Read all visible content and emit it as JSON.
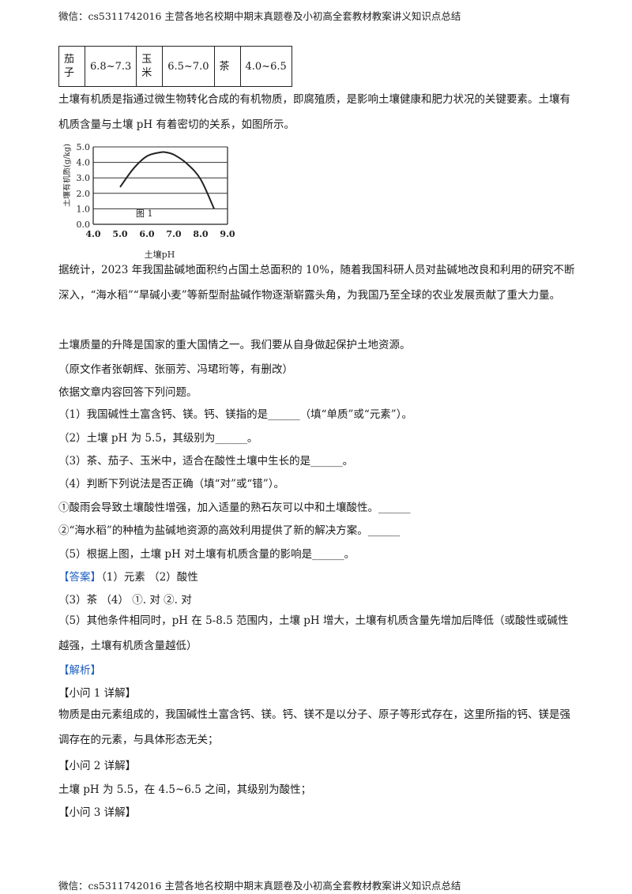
{
  "header": "微信：cs5311742016  主营各地名校期中期末真题卷及小初高全套教材教案讲义知识点总结",
  "footer": "微信：cs5311742016  主营各地名校期中期末真题卷及小初高全套教材教案讲义知识点总结",
  "table": [
    {
      "name": "茄子",
      "value": "6.8~7.3"
    },
    {
      "name": "玉米",
      "value": "6.5~7.0"
    },
    {
      "name": "茶",
      "value": "4.0~6.5"
    }
  ],
  "para1": "土壤有机质是指通过微生物转化合成的有机物质，即腐殖质，是影响土壤健康和肥力状况的关键要素。土壤有机质含量与土壤 pH 有着密切的关系，如图所示。",
  "chart_data": {
    "type": "line",
    "ylabel": "土壤有机质(g/kg)",
    "xlabel": "土壤pH",
    "annotation": "图 1",
    "xlim": [
      4.0,
      9.0
    ],
    "ylim": [
      0.0,
      5.0
    ],
    "xticks": [
      "4.0",
      "5.0",
      "6.0",
      "7.0",
      "8.0",
      "9.0"
    ],
    "yticks": [
      "0.0",
      "1.0",
      "2.0",
      "3.0",
      "4.0",
      "5.0"
    ],
    "grid": "horizontal",
    "series": [
      {
        "x": [
          5.0,
          5.5,
          6.0,
          6.5,
          6.7,
          7.0,
          7.5,
          8.0,
          8.5
        ],
        "y": [
          2.4,
          3.6,
          4.4,
          4.65,
          4.65,
          4.5,
          3.9,
          2.9,
          1.0
        ]
      }
    ]
  },
  "para2": "据统计，2023 年我国盐碱地面积约占国土总面积的 10%，随着我国科研人员对盐碱地改良和利用的研究不断深入，“海水稻”“旱碱小麦”等新型耐盐碱作物逐渐崭露头角，为我国乃至全球的农业发展贡献了重大力量。",
  "para3": "土壤质量的升降是国家的重大国情之一。我们要从自身做起保护土地资源。",
  "source": "（原文作者张朝辉、张丽芳、冯珺珩等，有删改）",
  "instruction": "依据文章内容回答下列问题。",
  "q1": "（1）我国碱性土富含钙、镁。钙、镁指的是______（填“单质”或“元素”）。",
  "q2": "（2）土壤 pH 为 5.5，其级别为______。",
  "q3": "（3）茶、茄子、玉米中，适合在酸性土壤中生长的是______。",
  "q4": "（4）判断下列说法是否正确（填“对”或“错”）。",
  "q4a": "①酸雨会导致土壤酸性增强，加入适量的熟石灰可以中和土壤酸性。______",
  "q4b": "②“海水稻”的种植为盐碱地资源的高效利用提供了新的解决方案。______",
  "q5": "（5）根据上图，土壤 pH 对土壤有机质含量的影响是______。",
  "answer_tag": "【答案】",
  "ans1": "（1）元素    （2）酸性",
  "ans2": "（3）茶      （4）    ①. 对    ②. 对",
  "ans3": "（5）其他条件相同时，pH 在 5-8.5 范围内，土壤 pH 增大，土壤有机质含量先增加后降低（或酸性或碱性越强，土壤有机质含量越低）",
  "analysis_tag": "【解析】",
  "sub1": "【小问 1 详解】",
  "exp1": "物质是由元素组成的，我国碱性土富含钙、镁。钙、镁不是以分子、原子等形式存在，这里所指的钙、镁是强调存在的元素，与具体形态无关；",
  "sub2": "【小问 2 详解】",
  "exp2": "土壤 pH 为 5.5，在 4.5~6.5 之间，其级别为酸性；",
  "sub3": "【小问 3 详解】"
}
